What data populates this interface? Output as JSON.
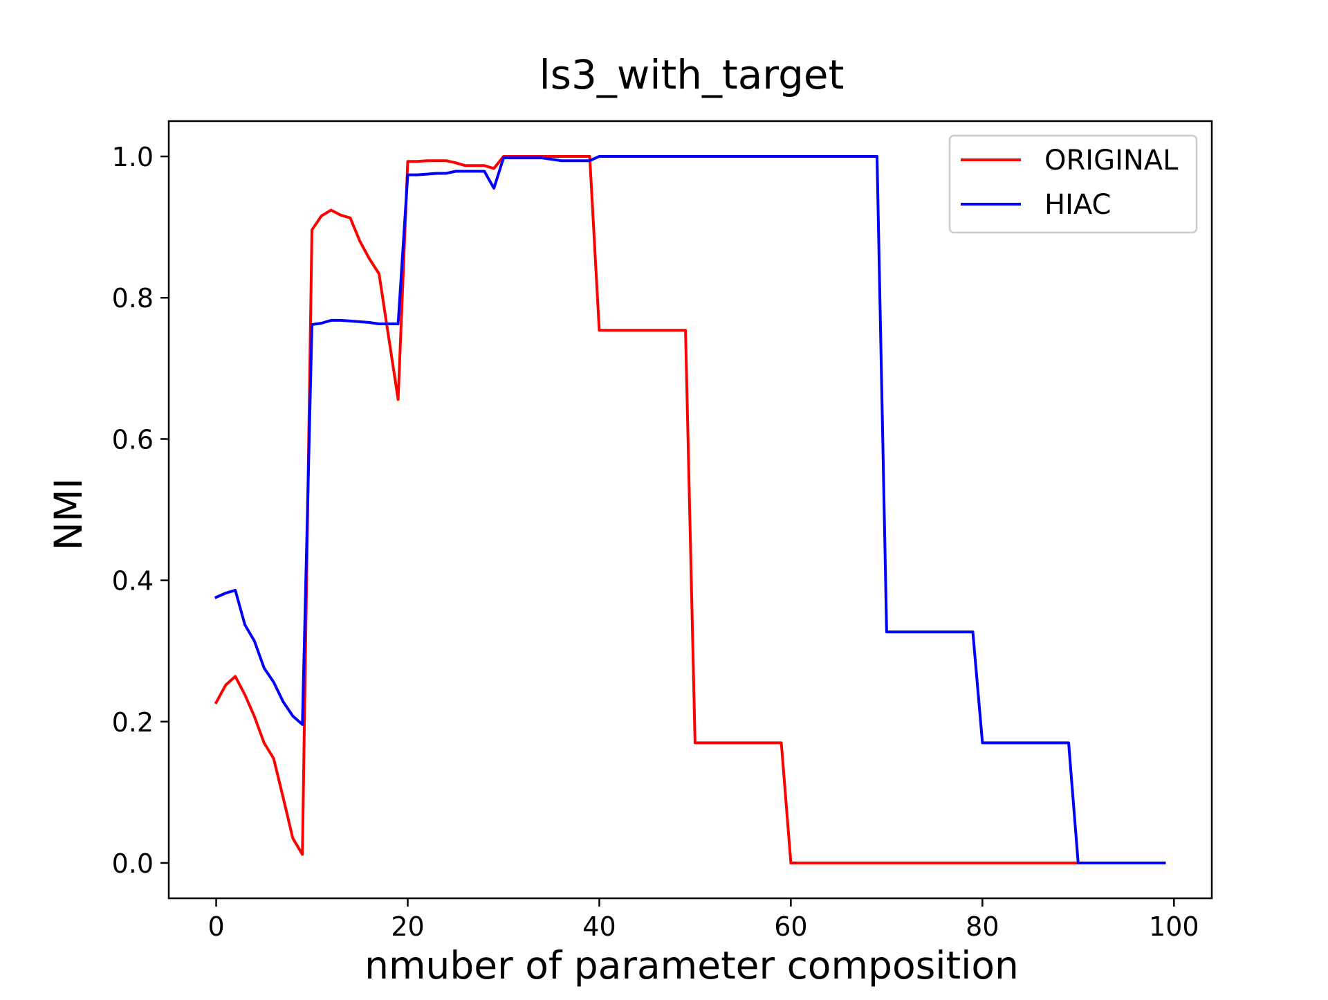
{
  "chart_data": {
    "type": "line",
    "title": "ls3_with_target",
    "xlabel": "nmuber of parameter composition",
    "ylabel": "NMI",
    "xlim": [
      -4.95,
      103.95
    ],
    "ylim": [
      -0.05,
      1.05
    ],
    "xticks": [
      0,
      20,
      40,
      60,
      80,
      100
    ],
    "yticks": [
      0.0,
      0.2,
      0.4,
      0.6,
      0.8,
      1.0
    ],
    "xtick_labels": [
      "0",
      "20",
      "40",
      "60",
      "80",
      "100"
    ],
    "ytick_labels": [
      "0.0",
      "0.2",
      "0.4",
      "0.6",
      "0.8",
      "1.0"
    ],
    "grid": false,
    "legend_position": "top-right",
    "series": [
      {
        "name": "ORIGINAL",
        "color": "#ff0000",
        "x": [
          0,
          1,
          2,
          3,
          4,
          5,
          6,
          7,
          8,
          9,
          10,
          11,
          12,
          13,
          14,
          15,
          16,
          17,
          18,
          19,
          20,
          21,
          22,
          23,
          24,
          25,
          26,
          27,
          28,
          29,
          30,
          31,
          32,
          33,
          34,
          35,
          36,
          37,
          38,
          39,
          40,
          41,
          42,
          43,
          44,
          45,
          46,
          47,
          48,
          49,
          50,
          51,
          52,
          53,
          54,
          55,
          56,
          57,
          58,
          59,
          60,
          61,
          62,
          63,
          64,
          65,
          66,
          67,
          68,
          69,
          70,
          71,
          72,
          73,
          74,
          75,
          76,
          77,
          78,
          79,
          80,
          81,
          82,
          83,
          84,
          85,
          86,
          87,
          88,
          89,
          90,
          91,
          92,
          93,
          94,
          95,
          96,
          97,
          98,
          99
        ],
        "y": [
          0.227,
          0.252,
          0.264,
          0.238,
          0.207,
          0.17,
          0.148,
          0.092,
          0.035,
          0.012,
          0.896,
          0.916,
          0.924,
          0.917,
          0.913,
          0.88,
          0.855,
          0.834,
          0.745,
          0.656,
          0.993,
          0.993,
          0.994,
          0.994,
          0.994,
          0.991,
          0.987,
          0.987,
          0.987,
          0.983,
          1.0,
          1.0,
          1.0,
          1.0,
          1.0,
          1.0,
          1.0,
          1.0,
          1.0,
          1.0,
          0.754,
          0.754,
          0.754,
          0.754,
          0.754,
          0.754,
          0.754,
          0.754,
          0.754,
          0.754,
          0.17,
          0.17,
          0.17,
          0.17,
          0.17,
          0.17,
          0.17,
          0.17,
          0.17,
          0.17,
          0.0,
          0.0,
          0.0,
          0.0,
          0.0,
          0.0,
          0.0,
          0.0,
          0.0,
          0.0,
          0.0,
          0.0,
          0.0,
          0.0,
          0.0,
          0.0,
          0.0,
          0.0,
          0.0,
          0.0,
          0.0,
          0.0,
          0.0,
          0.0,
          0.0,
          0.0,
          0.0,
          0.0,
          0.0,
          0.0,
          0.0,
          0.0,
          0.0,
          0.0,
          0.0,
          0.0,
          0.0,
          0.0,
          0.0,
          0.0
        ]
      },
      {
        "name": "HIAC",
        "color": "#0000ff",
        "x": [
          0,
          1,
          2,
          3,
          4,
          5,
          6,
          7,
          8,
          9,
          10,
          11,
          12,
          13,
          14,
          15,
          16,
          17,
          18,
          19,
          20,
          21,
          22,
          23,
          24,
          25,
          26,
          27,
          28,
          29,
          30,
          31,
          32,
          33,
          34,
          35,
          36,
          37,
          38,
          39,
          40,
          41,
          42,
          43,
          44,
          45,
          46,
          47,
          48,
          49,
          50,
          51,
          52,
          53,
          54,
          55,
          56,
          57,
          58,
          59,
          60,
          61,
          62,
          63,
          64,
          65,
          66,
          67,
          68,
          69,
          70,
          71,
          72,
          73,
          74,
          75,
          76,
          77,
          78,
          79,
          80,
          81,
          82,
          83,
          84,
          85,
          86,
          87,
          88,
          89,
          90,
          91,
          92,
          93,
          94,
          95,
          96,
          97,
          98,
          99
        ],
        "y": [
          0.376,
          0.382,
          0.386,
          0.337,
          0.314,
          0.276,
          0.256,
          0.228,
          0.208,
          0.196,
          0.762,
          0.764,
          0.768,
          0.768,
          0.767,
          0.766,
          0.765,
          0.763,
          0.763,
          0.763,
          0.974,
          0.974,
          0.975,
          0.976,
          0.976,
          0.979,
          0.979,
          0.979,
          0.979,
          0.955,
          0.998,
          0.998,
          0.998,
          0.998,
          0.998,
          0.996,
          0.994,
          0.994,
          0.994,
          0.994,
          1.0,
          1.0,
          1.0,
          1.0,
          1.0,
          1.0,
          1.0,
          1.0,
          1.0,
          1.0,
          1.0,
          1.0,
          1.0,
          1.0,
          1.0,
          1.0,
          1.0,
          1.0,
          1.0,
          1.0,
          1.0,
          1.0,
          1.0,
          1.0,
          1.0,
          1.0,
          1.0,
          1.0,
          1.0,
          1.0,
          0.327,
          0.327,
          0.327,
          0.327,
          0.327,
          0.327,
          0.327,
          0.327,
          0.327,
          0.327,
          0.17,
          0.17,
          0.17,
          0.17,
          0.17,
          0.17,
          0.17,
          0.17,
          0.17,
          0.17,
          0.0,
          0.0,
          0.0,
          0.0,
          0.0,
          0.0,
          0.0,
          0.0,
          0.0,
          0.0
        ]
      }
    ]
  }
}
